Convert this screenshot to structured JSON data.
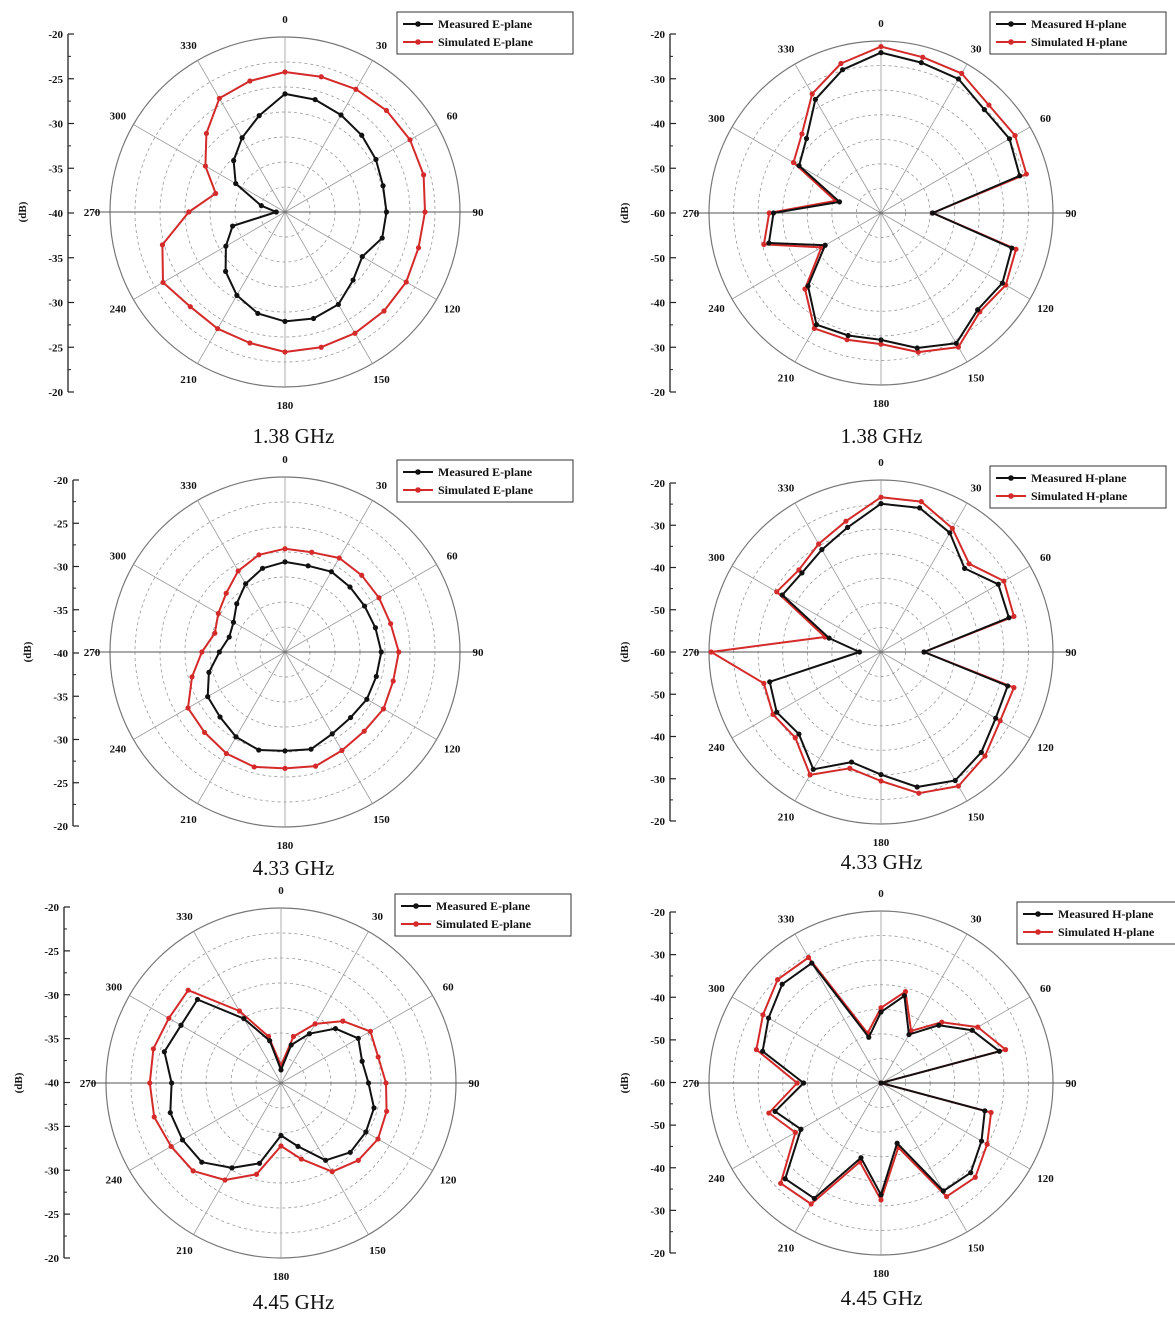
{
  "colors": {
    "measured": "#111111",
    "simulated": "#d42a2a",
    "grid": "#9a9a9a"
  },
  "angle_labels": [
    "0",
    "30",
    "60",
    "90",
    "120",
    "150",
    "180",
    "210",
    "240",
    "270",
    "300",
    "330"
  ],
  "chart_data": [
    {
      "type": "polar",
      "caption": "1.38 GHz",
      "ylabel": "(dB)",
      "r_ticks": [
        "-20",
        "-25",
        "-30",
        "-35",
        "-40",
        "-35",
        "-30",
        "-25",
        "-20"
      ],
      "rlim": [
        -40,
        -20
      ],
      "rings": 7,
      "legend_position": "top-right",
      "angles": [
        0,
        15,
        30,
        45,
        60,
        75,
        90,
        105,
        120,
        135,
        150,
        165,
        180,
        195,
        210,
        225,
        240,
        255,
        270,
        285,
        300,
        315,
        330,
        345
      ],
      "series": [
        {
          "name": "Measured E-plane",
          "values": [
            -26.5,
            -26.7,
            -27.2,
            -27.6,
            -28.0,
            -28.4,
            -28.4,
            -28.5,
            -29.8,
            -29.0,
            -27.8,
            -27.4,
            -27.5,
            -28.0,
            -29.0,
            -30.4,
            -32.2,
            -33.8,
            -39.0,
            -37.2,
            -33.5,
            -31.7,
            -30.2,
            -28.6
          ]
        },
        {
          "name": "Simulated E-plane",
          "values": [
            -24.0,
            -24.0,
            -23.8,
            -23.6,
            -23.5,
            -23.6,
            -24.0,
            -24.2,
            -24.0,
            -24.0,
            -24.0,
            -24.0,
            -24.0,
            -24.5,
            -24.6,
            -24.7,
            -23.9,
            -25.5,
            -29.0,
            -31.8,
            -29.5,
            -27.3,
            -25.0,
            -24.5
          ]
        }
      ]
    },
    {
      "type": "polar",
      "caption": "1.38 GHz",
      "ylabel": "(dB)",
      "r_ticks": [
        "-20",
        "-30",
        "-40",
        "-50",
        "-60",
        "-50",
        "-40",
        "-30",
        "-20"
      ],
      "rlim": [
        -60,
        -20
      ],
      "rings": 7,
      "legend_position": "top-right",
      "angles": [
        0,
        15,
        30,
        45,
        60,
        75,
        90,
        105,
        120,
        135,
        150,
        165,
        180,
        195,
        210,
        225,
        240,
        255,
        270,
        285,
        300,
        315,
        330,
        345
      ],
      "series": [
        {
          "name": "Measured H-plane",
          "values": [
            -22.7,
            -23.8,
            -24.0,
            -26.0,
            -25.5,
            -26.6,
            -48.0,
            -28.5,
            -27.4,
            -28.2,
            -25.0,
            -27.5,
            -30.5,
            -30.5,
            -30.0,
            -36.0,
            -45.0,
            -33.0,
            -35.0,
            -50.0,
            -38.0,
            -35.5,
            -29.5,
            -25.5
          ]
        },
        {
          "name": "Simulated H-plane",
          "values": [
            -21.3,
            -22.5,
            -22.5,
            -24.5,
            -24.0,
            -25.0,
            -48.0,
            -27.5,
            -26.5,
            -27.5,
            -24.0,
            -26.5,
            -29.5,
            -29.5,
            -29.0,
            -35.0,
            -44.0,
            -31.8,
            -34.0,
            -49.0,
            -36.5,
            -34.0,
            -28.0,
            -24.0
          ]
        }
      ]
    },
    {
      "type": "polar",
      "caption": "4.33 GHz",
      "ylabel": "(dB)",
      "r_ticks": [
        "-20",
        "-25",
        "-30",
        "-35",
        "-40",
        "-35",
        "-30",
        "-25",
        "-20"
      ],
      "rlim": [
        -40,
        -20
      ],
      "rings": 7,
      "legend_position": "top-right",
      "angles": [
        0,
        15,
        30,
        45,
        60,
        75,
        90,
        105,
        120,
        135,
        150,
        165,
        180,
        195,
        210,
        225,
        240,
        255,
        270,
        285,
        300,
        315,
        330,
        345
      ],
      "series": [
        {
          "name": "Measured E-plane",
          "values": [
            -29.7,
            -29.8,
            -29.4,
            -29.5,
            -29.5,
            -29.3,
            -29.0,
            -29.2,
            -29.2,
            -29.4,
            -29.2,
            -28.5,
            -28.7,
            -28.4,
            -28.8,
            -29.5,
            -29.8,
            -31.0,
            -32.5,
            -33.4,
            -33.2,
            -32.2,
            -31.0,
            -30.1
          ]
        },
        {
          "name": "Simulated E-plane",
          "values": [
            -28.2,
            -28.2,
            -27.6,
            -27.6,
            -27.6,
            -27.5,
            -27.0,
            -27.2,
            -27.0,
            -27.2,
            -27.0,
            -26.5,
            -26.7,
            -26.4,
            -26.6,
            -27.0,
            -27.2,
            -29.0,
            -30.5,
            -31.7,
            -31.2,
            -30.5,
            -29.3,
            -28.5
          ]
        }
      ]
    },
    {
      "type": "polar",
      "caption": "4.33 GHz",
      "ylabel": "(dB)",
      "r_ticks": [
        "-20",
        "-30",
        "-40",
        "-50",
        "-60",
        "-50",
        "-40",
        "-30",
        "-20"
      ],
      "rlim": [
        -60,
        -20
      ],
      "rings": 7,
      "legend_position": "top-right",
      "angles": [
        0,
        15,
        30,
        45,
        60,
        75,
        90,
        105,
        120,
        135,
        150,
        165,
        180,
        195,
        210,
        225,
        240,
        255,
        270,
        285,
        300,
        315,
        330,
        345
      ],
      "series": [
        {
          "name": "Measured H-plane",
          "values": [
            -25.5,
            -25.3,
            -28.0,
            -32.5,
            -28.5,
            -29.2,
            -50.0,
            -29.5,
            -29.2,
            -27.0,
            -25.5,
            -27.5,
            -31.5,
            -33.5,
            -28.5,
            -33.0,
            -32.0,
            -33.2,
            -55.0,
            -47.5,
            -33.5,
            -34.0,
            -32.5,
            -30.0
          ]
        },
        {
          "name": "Simulated H-plane",
          "values": [
            -24.0,
            -23.8,
            -26.8,
            -31.0,
            -27.0,
            -28.0,
            -50.0,
            -28.0,
            -28.0,
            -25.8,
            -24.0,
            -26.0,
            -30.0,
            -32.0,
            -27.0,
            -31.8,
            -31.0,
            -31.8,
            -20.5,
            -46.5,
            -32.0,
            -33.0,
            -31.0,
            -28.5
          ]
        }
      ]
    },
    {
      "type": "polar",
      "caption": "4.45 GHz",
      "ylabel": "(dB)",
      "r_ticks": [
        "-20",
        "-25",
        "-30",
        "-35",
        "-40",
        "-35",
        "-30",
        "-25",
        "-20"
      ],
      "rlim": [
        -40,
        -20
      ],
      "rings": 7,
      "legend_position": "top-right",
      "angles": [
        0,
        15,
        30,
        45,
        60,
        75,
        90,
        105,
        120,
        135,
        150,
        165,
        180,
        195,
        210,
        225,
        240,
        255,
        270,
        285,
        300,
        315,
        330,
        345
      ],
      "series": [
        {
          "name": "Measured E-plane",
          "values": [
            -38.5,
            -35.5,
            -33.5,
            -31.2,
            -29.8,
            -30.4,
            -30.0,
            -29.0,
            -28.8,
            -28.8,
            -29.8,
            -32.5,
            -34.0,
            -30.5,
            -28.8,
            -27.2,
            -27.0,
            -26.9,
            -27.5,
            -26.2,
            -26.8,
            -26.5,
            -31.5,
            -35.0
          ]
        },
        {
          "name": "Simulated E-plane",
          "values": [
            -38.0,
            -34.5,
            -32.2,
            -30.0,
            -28.2,
            -28.5,
            -28.0,
            -27.5,
            -27.2,
            -27.5,
            -28.3,
            -31.0,
            -32.8,
            -29.2,
            -27.2,
            -25.8,
            -25.5,
            -25.0,
            -25.0,
            -24.9,
            -25.2,
            -25.0,
            -30.5,
            -34.5
          ]
        }
      ]
    },
    {
      "type": "polar",
      "caption": "4.45 GHz",
      "ylabel": "(dB)",
      "r_ticks": [
        "-20",
        "-30",
        "-40",
        "-50",
        "-60",
        "-50",
        "-40",
        "-30",
        "-20"
      ],
      "rlim": [
        -60,
        -20
      ],
      "rings": 7,
      "legend_position": "top-right",
      "angles": [
        0,
        15,
        30,
        45,
        60,
        75,
        90,
        105,
        120,
        135,
        150,
        165,
        180,
        195,
        210,
        225,
        240,
        255,
        270,
        285,
        300,
        315,
        330,
        345
      ],
      "series": [
        {
          "name": "Measured H-plane",
          "values": [
            -43.5,
            -39.0,
            -47.0,
            -41.0,
            -35.5,
            -31.5,
            -60.0,
            -35.0,
            -33.0,
            -30.5,
            -31.0,
            -45.5,
            -34.0,
            -42.0,
            -29.0,
            -28.5,
            -38.5,
            -34.5,
            -42.0,
            -31.5,
            -29.8,
            -27.5,
            -27.8,
            -49.0
          ]
        },
        {
          "name": "Simulated H-plane",
          "values": [
            -42.5,
            -38.0,
            -46.0,
            -40.0,
            -34.0,
            -30.0,
            -60.0,
            -33.5,
            -31.5,
            -29.0,
            -29.5,
            -44.5,
            -32.8,
            -41.0,
            -27.5,
            -27.0,
            -37.0,
            -33.0,
            -40.5,
            -30.0,
            -28.3,
            -26.0,
            -26.3,
            -48.0
          ]
        }
      ]
    }
  ]
}
